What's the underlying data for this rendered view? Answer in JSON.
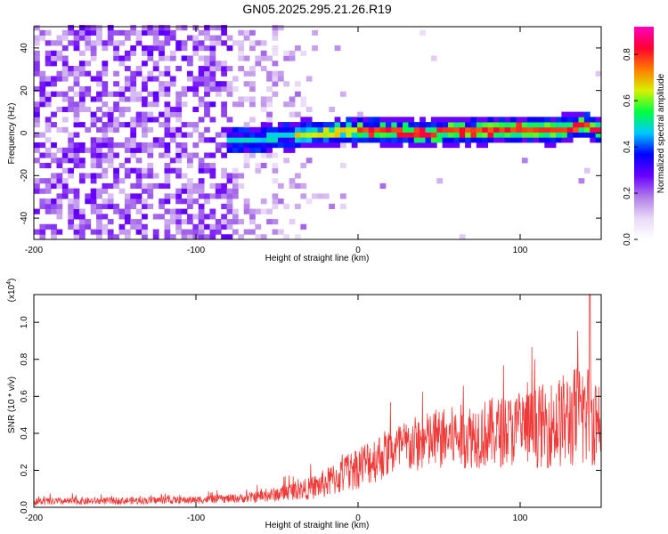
{
  "title": "GN05.2025.295.21.26.R19",
  "colors": {
    "snr_line": "#ee3a38",
    "colormap": [
      "#ffffff",
      "#e9d9f7",
      "#b07be8",
      "#6a00ff",
      "#0000ff",
      "#00c8ff",
      "#00ff40",
      "#d8f000",
      "#ff7a00",
      "#ff0030",
      "#ff00c0"
    ]
  },
  "chart_data": [
    {
      "type": "heatmap",
      "name": "spectrogram",
      "xlabel": "Height of straight line (km)",
      "ylabel": "Frequency (Hz)",
      "xlim": [
        -200,
        150
      ],
      "ylim": [
        -50,
        50
      ],
      "xticks": [
        -200,
        -100,
        0,
        100
      ],
      "yticks": [
        -40,
        -20,
        0,
        20,
        40
      ],
      "colorbar": {
        "label": "Normalized spectral amplitude",
        "range": [
          0.0,
          0.92
        ],
        "ticks": [
          "0.0",
          "0.2",
          "0.4",
          "0.6",
          "0.8"
        ]
      },
      "noise_region_x": [
        -200,
        -30
      ],
      "signal_track": {
        "start_x": -80,
        "frequency_center": [
          [
            -80,
            -3
          ],
          [
            -60,
            -3
          ],
          [
            -40,
            -1
          ],
          [
            -20,
            0
          ],
          [
            0,
            1
          ],
          [
            20,
            1
          ],
          [
            40,
            0
          ],
          [
            60,
            1
          ],
          [
            80,
            1
          ],
          [
            100,
            2
          ],
          [
            120,
            1
          ],
          [
            140,
            4
          ],
          [
            150,
            1
          ]
        ]
      }
    },
    {
      "type": "line",
      "name": "snr",
      "xlabel": "Height of straight line (km)",
      "ylabel": "SNR (10 * v/v)",
      "scale_label": "(x10^4)",
      "xlim": [
        -200,
        150
      ],
      "ylim": [
        0,
        1.15
      ],
      "xticks": [
        -200,
        -100,
        0,
        100
      ],
      "yticks": [
        "0.0",
        "0.2",
        "0.4",
        "0.6",
        "0.8",
        "1.0"
      ],
      "envelope_x": [
        -200,
        -150,
        -100,
        -70,
        -50,
        -40,
        -30,
        -20,
        -10,
        0,
        20,
        40,
        60,
        80,
        100,
        120,
        140,
        150
      ],
      "envelope_mean": [
        0.03,
        0.035,
        0.04,
        0.05,
        0.07,
        0.09,
        0.1,
        0.13,
        0.17,
        0.22,
        0.3,
        0.35,
        0.38,
        0.4,
        0.42,
        0.45,
        0.5,
        0.48
      ],
      "envelope_spread": [
        0.02,
        0.02,
        0.02,
        0.025,
        0.04,
        0.05,
        0.06,
        0.08,
        0.1,
        0.12,
        0.14,
        0.16,
        0.17,
        0.19,
        0.2,
        0.24,
        0.3,
        0.25
      ],
      "peak": [
        143,
        1.15
      ]
    }
  ]
}
